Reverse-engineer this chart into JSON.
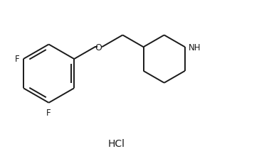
{
  "background_color": "#ffffff",
  "line_color": "#1a1a1a",
  "line_width": 1.4,
  "font_size_labels": 8.5,
  "font_size_hcl": 10,
  "hcl_text": "HCl",
  "F_label": "F",
  "NH_label": "NH",
  "O_label": "O",
  "fig_width": 3.71,
  "fig_height": 2.28,
  "dpi": 100
}
